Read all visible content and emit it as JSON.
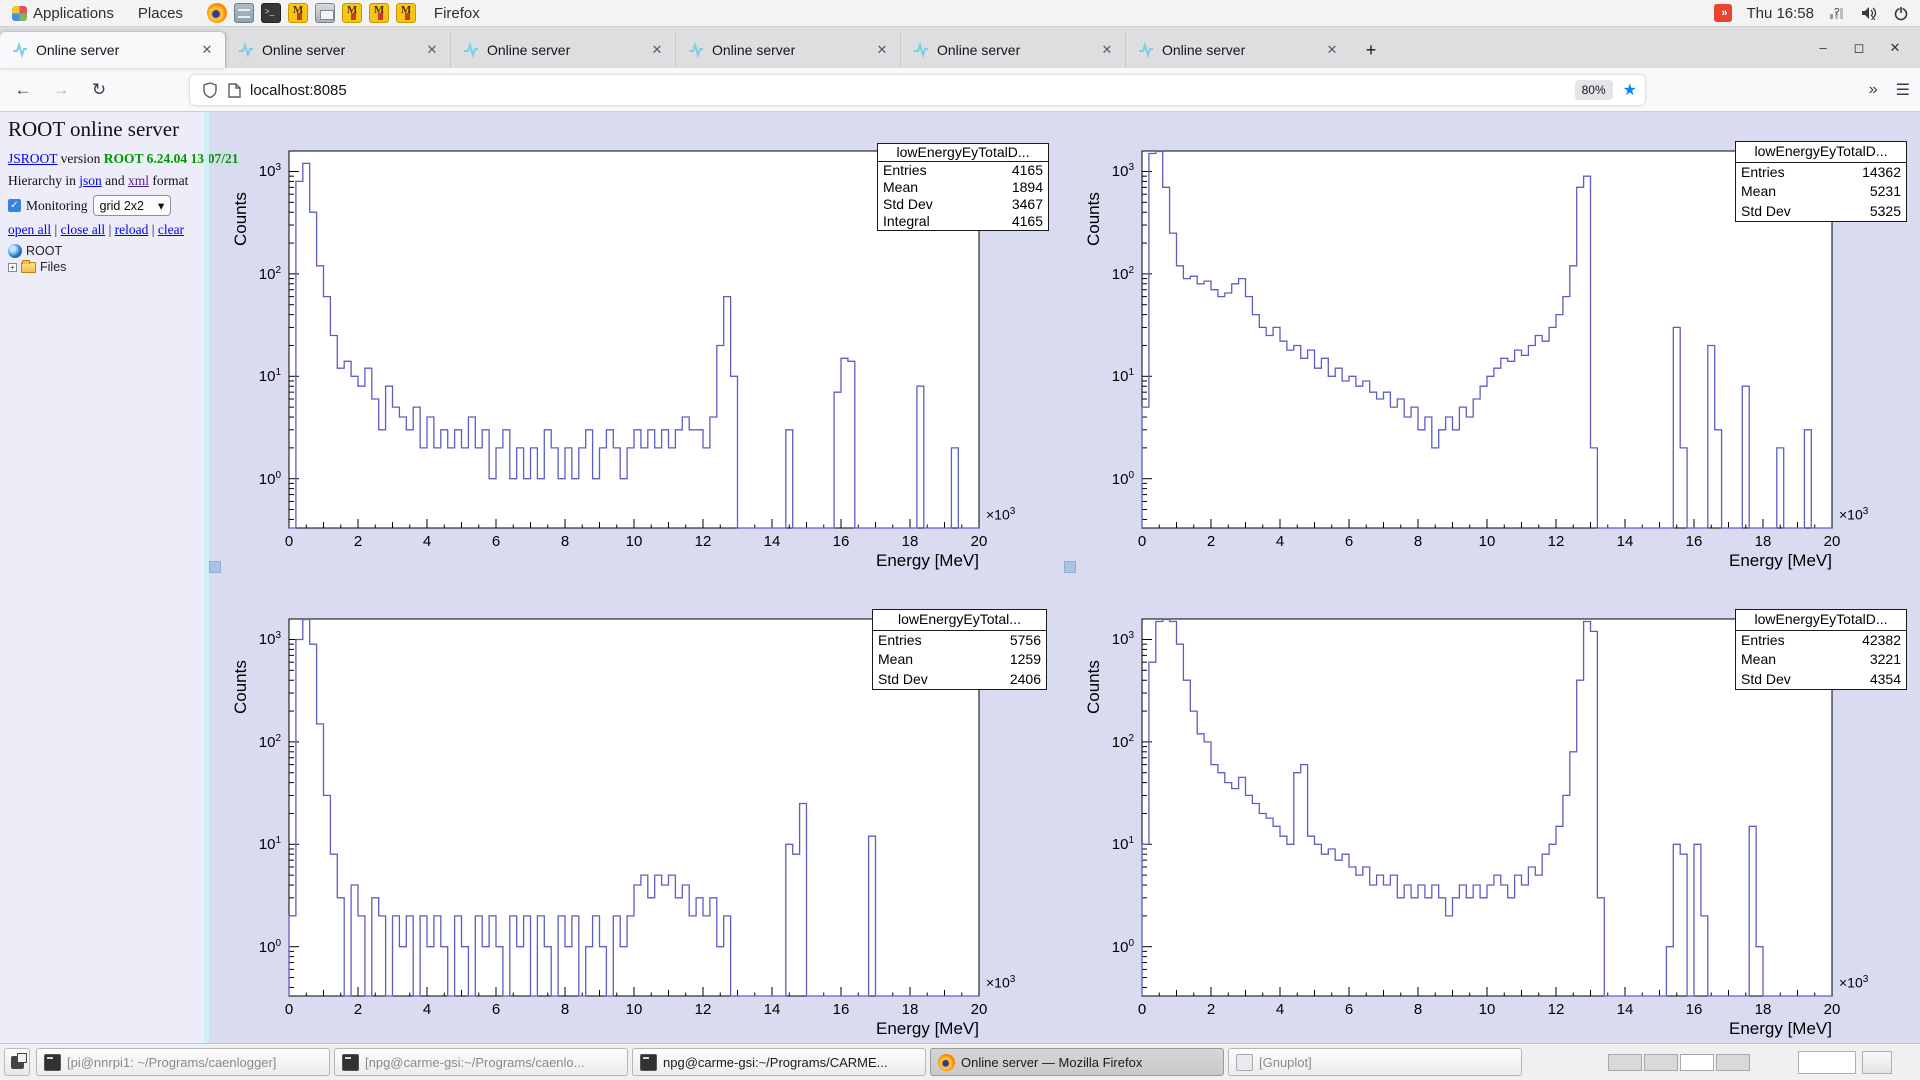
{
  "desktop": {
    "topbar": {
      "menus": [
        "Applications",
        "Places"
      ],
      "launchers": [
        "firefox",
        "file-manager",
        "terminal",
        "midas",
        "screenshot",
        "midas",
        "midas",
        "midas"
      ],
      "window_label": "Firefox",
      "clock": "Thu 16:58"
    },
    "taskbar": {
      "windows": [
        {
          "icon": "terminal",
          "label": "[pi@nnrpi1: ~/Programs/caenlogger]",
          "minimized": true,
          "active": false
        },
        {
          "icon": "terminal",
          "label": "[npg@carme-gsi:~/Programs/caenlo...",
          "minimized": true,
          "active": false
        },
        {
          "icon": "terminal",
          "label": "npg@carme-gsi:~/Programs/CARME...",
          "minimized": false,
          "active": false
        },
        {
          "icon": "firefox",
          "label": "Online server — Mozilla Firefox",
          "minimized": false,
          "active": true
        },
        {
          "icon": "gnuplot",
          "label": "[Gnuplot]",
          "minimized": true,
          "active": false
        }
      ],
      "workspaces": 4,
      "active_workspace": 3
    }
  },
  "browser": {
    "tabs": [
      {
        "title": "Online server"
      },
      {
        "title": "Online server"
      },
      {
        "title": "Online server"
      },
      {
        "title": "Online server"
      },
      {
        "title": "Online server"
      },
      {
        "title": "Online server"
      }
    ],
    "new_tab_label": "+",
    "url_host": "localhost",
    "url_port": ":8085",
    "zoom_badge": "80%"
  },
  "page": {
    "title": "ROOT online server",
    "version_link": "JSROOT",
    "version_mid": " version ",
    "version_value": "ROOT 6.24.04 13/07/21",
    "hierarchy_prefix": "Hierarchy in ",
    "hierarchy_link1": "json",
    "hierarchy_and": " and ",
    "hierarchy_link2": "xml",
    "hierarchy_suffix": " format",
    "monitoring_label": "Monitoring",
    "layout_select": "grid 2x2",
    "tree_links": [
      "open all",
      "close all",
      "reload",
      "clear"
    ],
    "tree_root": "ROOT",
    "tree_files": "Files"
  },
  "colors": {
    "hist_line": "#5d5fc0",
    "canvas_bg": "#d9dbf1",
    "sidebar_bg": "#ecedf9",
    "frame_bg": "#ffffff",
    "star_blue": "#0a84ff",
    "version_green": "#009900"
  },
  "chart_data": [
    {
      "type": "histogram",
      "name": "lowEnergyEyTotalD...",
      "stats": {
        "title": "lowEnergyEyTotalD...",
        "rows": [
          [
            "Entries",
            "4165"
          ],
          [
            "Mean",
            "1894"
          ],
          [
            "Std Dev",
            "3467"
          ],
          [
            "Integral",
            "4165"
          ]
        ]
      },
      "xlabel": "Energy [MeV]",
      "ylabel": "Counts",
      "x_scale_prefix": "×10",
      "x_scale_exp": "3",
      "xlim": [
        0,
        20
      ],
      "x_tick_step": 2,
      "ylog": true,
      "y_decades": [
        0,
        1,
        2,
        3
      ],
      "ylim": [
        0.33,
        1585
      ],
      "bin_width": 0.2,
      "bins": [
        0,
        800,
        1200,
        400,
        120,
        60,
        25,
        12,
        14,
        10,
        8,
        12,
        6,
        3,
        8,
        5,
        4,
        3,
        5,
        2,
        4,
        2,
        3,
        2,
        3,
        2,
        4,
        2,
        3,
        1,
        2,
        3,
        1,
        2,
        1,
        2,
        1,
        3,
        2,
        1,
        2,
        1,
        2,
        3,
        1,
        2,
        3,
        2,
        1,
        2,
        3,
        2,
        3,
        2,
        3,
        2,
        3,
        4,
        3,
        3,
        2,
        4,
        20,
        60,
        10,
        0,
        0,
        0,
        0,
        0,
        0,
        0,
        3,
        0,
        0,
        0,
        0,
        0,
        0,
        7,
        15,
        14,
        0,
        0,
        0,
        0,
        0,
        0,
        0,
        0,
        0,
        8,
        0,
        0,
        0,
        0,
        2,
        0,
        0,
        0
      ]
    },
    {
      "type": "histogram",
      "name": "lowEnergyEyTotalD...",
      "stats": {
        "title": "lowEnergyEyTotalD...",
        "rows": [
          [
            "Entries",
            "14362"
          ],
          [
            "Mean",
            "5231"
          ],
          [
            "Std Dev",
            "5325"
          ]
        ]
      },
      "xlabel": "Energy [MeV]",
      "ylabel": "Counts",
      "x_scale_prefix": "×10",
      "x_scale_exp": "3",
      "xlim": [
        0,
        20
      ],
      "x_tick_step": 2,
      "ylog": true,
      "y_decades": [
        0,
        1,
        2,
        3
      ],
      "ylim": [
        0.33,
        1585
      ],
      "bin_width": 0.2,
      "bins": [
        5,
        1500,
        2000,
        700,
        250,
        120,
        90,
        95,
        80,
        85,
        70,
        60,
        65,
        80,
        90,
        60,
        40,
        30,
        25,
        30,
        22,
        18,
        20,
        15,
        18,
        12,
        15,
        10,
        12,
        9,
        10,
        8,
        9,
        7,
        6,
        7,
        5,
        6,
        4,
        5,
        3,
        4,
        2,
        3,
        4,
        3,
        5,
        4,
        6,
        8,
        10,
        12,
        15,
        14,
        18,
        16,
        20,
        25,
        22,
        30,
        40,
        60,
        120,
        700,
        900,
        2,
        0,
        0,
        0,
        0,
        0,
        0,
        0,
        0,
        0,
        0,
        0,
        30,
        2,
        0,
        0,
        0,
        20,
        3,
        0,
        0,
        0,
        8,
        0,
        0,
        0,
        0,
        2,
        0,
        0,
        0,
        3,
        0,
        0,
        0
      ]
    },
    {
      "type": "histogram",
      "name": "lowEnergyEyTotal...",
      "stats": {
        "title": "lowEnergyEyTotal...",
        "rows": [
          [
            "Entries",
            "5756"
          ],
          [
            "Mean",
            "1259"
          ],
          [
            "Std Dev",
            "2406"
          ]
        ]
      },
      "xlabel": "Energy [MeV]",
      "ylabel": "Counts",
      "x_scale_prefix": "×10",
      "x_scale_exp": "3",
      "xlim": [
        0,
        20
      ],
      "x_tick_step": 2,
      "ylog": true,
      "y_decades": [
        0,
        1,
        2,
        3
      ],
      "ylim": [
        0.33,
        1585
      ],
      "bin_width": 0.2,
      "bins": [
        2,
        1000,
        2000,
        900,
        150,
        30,
        8,
        3,
        0,
        4,
        2,
        0,
        3,
        2,
        0,
        2,
        1,
        2,
        0,
        2,
        1,
        2,
        1,
        0,
        2,
        1,
        0,
        2,
        1,
        2,
        1,
        0,
        2,
        1,
        2,
        0,
        2,
        1,
        0,
        2,
        1,
        2,
        0,
        1,
        2,
        1,
        0,
        2,
        1,
        2,
        4,
        5,
        3,
        5,
        4,
        5,
        3,
        4,
        2,
        3,
        2,
        3,
        1,
        2,
        0,
        0,
        0,
        0,
        0,
        0,
        0,
        0,
        10,
        8,
        25,
        0,
        0,
        0,
        0,
        0,
        0,
        0,
        0,
        0,
        12,
        0,
        0,
        0,
        0,
        0,
        0,
        0,
        0,
        0,
        0,
        0,
        0,
        0,
        0,
        0
      ]
    },
    {
      "type": "histogram",
      "name": "lowEnergyEyTotalD...",
      "stats": {
        "title": "lowEnergyEyTotalD...",
        "rows": [
          [
            "Entries",
            "42382"
          ],
          [
            "Mean",
            "3221"
          ],
          [
            "Std Dev",
            "4354"
          ]
        ]
      },
      "xlabel": "Energy [MeV]",
      "ylabel": "Counts",
      "x_scale_prefix": "×10",
      "x_scale_exp": "3",
      "xlim": [
        0,
        20
      ],
      "x_tick_step": 2,
      "ylog": true,
      "y_decades": [
        0,
        1,
        2,
        3
      ],
      "ylim": [
        0.33,
        1585
      ],
      "bin_width": 0.2,
      "bins": [
        10,
        600,
        1500,
        2500,
        1500,
        900,
        400,
        200,
        120,
        100,
        60,
        50,
        40,
        35,
        45,
        30,
        25,
        20,
        18,
        15,
        12,
        10,
        50,
        60,
        12,
        10,
        8,
        9,
        7,
        8,
        6,
        5,
        6,
        4,
        5,
        4,
        5,
        3,
        4,
        3,
        4,
        3,
        4,
        3,
        2,
        3,
        4,
        3,
        4,
        3,
        4,
        5,
        4,
        3,
        5,
        4,
        6,
        5,
        8,
        10,
        15,
        30,
        80,
        400,
        1500,
        1200,
        3,
        0,
        0,
        0,
        0,
        0,
        0,
        0,
        0,
        0,
        1,
        10,
        8,
        0,
        10,
        2,
        0,
        0,
        0,
        0,
        0,
        0,
        15,
        1,
        0,
        0,
        0,
        0,
        0,
        0,
        0,
        0,
        0,
        0
      ]
    }
  ]
}
